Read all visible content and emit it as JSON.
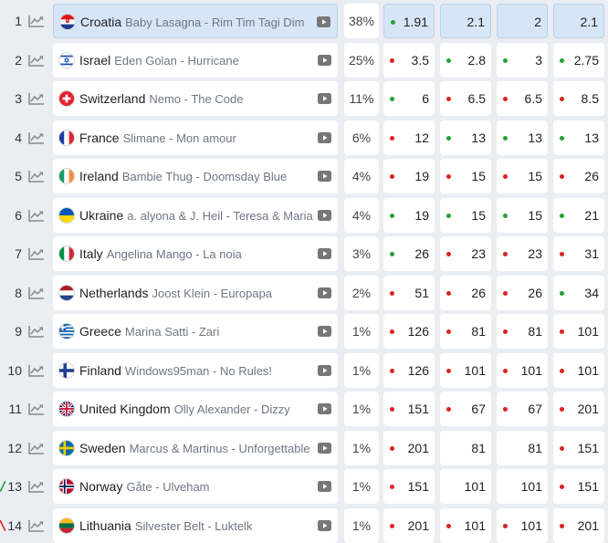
{
  "colors": {
    "up": "#23a033",
    "down": "#e02020",
    "highlight": "#d6e6f7"
  },
  "rows": [
    {
      "rank": "1",
      "country": "Croatia",
      "song": "Baby Lasagna - Rim Tim Tagi Dim",
      "chance": "38%",
      "highlight": true,
      "odds": [
        {
          "value": "1.91",
          "dot": "up"
        },
        {
          "value": "2.1",
          "dot": ""
        },
        {
          "value": "2",
          "dot": ""
        },
        {
          "value": "2.1",
          "dot": ""
        }
      ]
    },
    {
      "rank": "2",
      "country": "Israel",
      "song": "Eden Golan - Hurricane",
      "chance": "25%",
      "odds": [
        {
          "value": "3.5",
          "dot": "down"
        },
        {
          "value": "2.8",
          "dot": "up"
        },
        {
          "value": "3",
          "dot": "up"
        },
        {
          "value": "2.75",
          "dot": "up"
        }
      ]
    },
    {
      "rank": "3",
      "country": "Switzerland",
      "song": "Nemo - The Code",
      "chance": "11%",
      "odds": [
        {
          "value": "6",
          "dot": "up"
        },
        {
          "value": "6.5",
          "dot": "down"
        },
        {
          "value": "6.5",
          "dot": "down"
        },
        {
          "value": "8.5",
          "dot": "down"
        }
      ]
    },
    {
      "rank": "4",
      "country": "France",
      "song": "Slimane - Mon amour",
      "chance": "6%",
      "odds": [
        {
          "value": "12",
          "dot": "down"
        },
        {
          "value": "13",
          "dot": "up"
        },
        {
          "value": "13",
          "dot": "up"
        },
        {
          "value": "13",
          "dot": "up"
        }
      ]
    },
    {
      "rank": "5",
      "country": "Ireland",
      "song": "Bambie Thug - Doomsday Blue",
      "chance": "4%",
      "odds": [
        {
          "value": "19",
          "dot": "down"
        },
        {
          "value": "15",
          "dot": "down"
        },
        {
          "value": "15",
          "dot": "down"
        },
        {
          "value": "26",
          "dot": "down"
        }
      ]
    },
    {
      "rank": "6",
      "country": "Ukraine",
      "song": "a. alyona & J. Heil - Teresa & Maria",
      "chance": "4%",
      "odds": [
        {
          "value": "19",
          "dot": "up"
        },
        {
          "value": "15",
          "dot": "up"
        },
        {
          "value": "15",
          "dot": "up"
        },
        {
          "value": "21",
          "dot": "up"
        }
      ]
    },
    {
      "rank": "7",
      "country": "Italy",
      "song": "Angelina Mango - La noia",
      "chance": "3%",
      "odds": [
        {
          "value": "26",
          "dot": "up"
        },
        {
          "value": "23",
          "dot": "down"
        },
        {
          "value": "23",
          "dot": "down"
        },
        {
          "value": "31",
          "dot": "down"
        }
      ]
    },
    {
      "rank": "8",
      "country": "Netherlands",
      "song": "Joost Klein - Europapa",
      "chance": "2%",
      "odds": [
        {
          "value": "51",
          "dot": "down"
        },
        {
          "value": "26",
          "dot": "down"
        },
        {
          "value": "26",
          "dot": "down"
        },
        {
          "value": "34",
          "dot": "up"
        }
      ]
    },
    {
      "rank": "9",
      "country": "Greece",
      "song": "Marina Satti - Zari",
      "chance": "1%",
      "odds": [
        {
          "value": "126",
          "dot": "down"
        },
        {
          "value": "81",
          "dot": "down"
        },
        {
          "value": "81",
          "dot": "down"
        },
        {
          "value": "101",
          "dot": "down"
        }
      ]
    },
    {
      "rank": "10",
      "country": "Finland",
      "song": "Windows95man - No Rules!",
      "chance": "1%",
      "odds": [
        {
          "value": "126",
          "dot": "down"
        },
        {
          "value": "101",
          "dot": "down"
        },
        {
          "value": "101",
          "dot": "down"
        },
        {
          "value": "101",
          "dot": "down"
        }
      ]
    },
    {
      "rank": "11",
      "country": "United Kingdom",
      "song": "Olly Alexander - Dizzy",
      "chance": "1%",
      "odds": [
        {
          "value": "151",
          "dot": "down"
        },
        {
          "value": "67",
          "dot": "down"
        },
        {
          "value": "67",
          "dot": "down"
        },
        {
          "value": "201",
          "dot": "down"
        }
      ]
    },
    {
      "rank": "12",
      "country": "Sweden",
      "song": "Marcus & Martinus - Unforgettable",
      "chance": "1%",
      "odds": [
        {
          "value": "201",
          "dot": "down"
        },
        {
          "value": "81",
          "dot": ""
        },
        {
          "value": "81",
          "dot": ""
        },
        {
          "value": "151",
          "dot": "down"
        }
      ]
    },
    {
      "rank": "13",
      "country": "Norway",
      "song": "Gåte - Ulveham",
      "chance": "1%",
      "trend": "up",
      "odds": [
        {
          "value": "151",
          "dot": "down"
        },
        {
          "value": "101",
          "dot": ""
        },
        {
          "value": "101",
          "dot": ""
        },
        {
          "value": "151",
          "dot": "down"
        }
      ]
    },
    {
      "rank": "14",
      "country": "Lithuania",
      "song": "Silvester Belt - Luktelk",
      "chance": "1%",
      "trend": "down",
      "odds": [
        {
          "value": "201",
          "dot": "down"
        },
        {
          "value": "101",
          "dot": "down"
        },
        {
          "value": "101",
          "dot": "down"
        },
        {
          "value": "201",
          "dot": "down"
        }
      ]
    }
  ]
}
